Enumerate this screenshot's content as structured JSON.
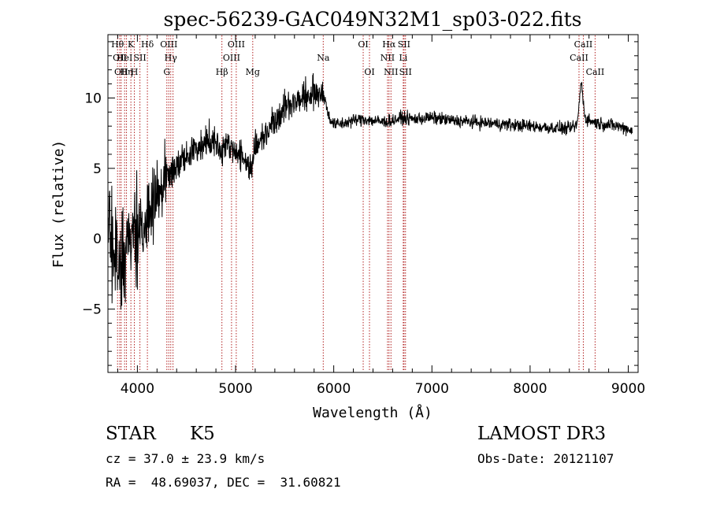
{
  "chart_data": {
    "type": "line",
    "title": "spec-56239-GAC049N32M1_sp03-022.fits",
    "xlabel": "Wavelength (Å)",
    "ylabel": "Flux (relative)",
    "xlim": [
      3700,
      9100
    ],
    "ylim": [
      -9.5,
      14.5
    ],
    "grid": false,
    "legend": "none",
    "line_color": "#000000",
    "marker_color": "#b22222",
    "xticks": [
      {
        "value": 4000,
        "label": "4000"
      },
      {
        "value": 5000,
        "label": "5000"
      },
      {
        "value": 6000,
        "label": "6000"
      },
      {
        "value": 7000,
        "label": "7000"
      },
      {
        "value": 8000,
        "label": "8000"
      },
      {
        "value": 9000,
        "label": "9000"
      }
    ],
    "yticks": [
      {
        "value": -5,
        "label": "−5"
      },
      {
        "value": 0,
        "label": "0"
      },
      {
        "value": 5,
        "label": "5"
      },
      {
        "value": 10,
        "label": "10"
      }
    ],
    "continuum": {
      "x": [
        3700,
        3800,
        3900,
        4000,
        4100,
        4200,
        4300,
        4400,
        4500,
        4600,
        4700,
        4800,
        4860,
        4900,
        5000,
        5100,
        5150,
        5200,
        5300,
        5400,
        5500,
        5600,
        5700,
        5800,
        5890,
        5950,
        6000,
        6100,
        6200,
        6300,
        6400,
        6500,
        6600,
        6700,
        6800,
        7000,
        7200,
        7400,
        7600,
        7800,
        8000,
        8200,
        8400,
        8480,
        8520,
        8560,
        8600,
        8700,
        8800,
        8900,
        9000,
        9040
      ],
      "y": [
        0.5,
        -2.0,
        -0.5,
        0.5,
        1.5,
        3.0,
        4.3,
        5.2,
        5.8,
        6.4,
        6.9,
        7.1,
        6.2,
        6.8,
        6.3,
        5.5,
        5.0,
        6.4,
        7.5,
        8.5,
        9.3,
        9.8,
        10.0,
        10.3,
        10.5,
        8.7,
        8.1,
        8.2,
        8.4,
        8.5,
        8.4,
        8.3,
        8.4,
        8.6,
        8.5,
        8.6,
        8.4,
        8.3,
        8.2,
        8.1,
        8.0,
        7.9,
        7.8,
        8.1,
        11.2,
        8.6,
        8.4,
        8.2,
        8.1,
        8.0,
        7.8,
        7.7
      ]
    },
    "noise": [
      {
        "to": 4000,
        "amp": 3.0
      },
      {
        "to": 4300,
        "amp": 1.8
      },
      {
        "to": 4900,
        "amp": 0.9
      },
      {
        "to": 5300,
        "amp": 0.8
      },
      {
        "to": 5900,
        "amp": 0.9
      },
      {
        "to": 9100,
        "amp": 0.35
      }
    ],
    "lines": [
      {
        "wl": 3798,
        "label": "Hθ",
        "row": 0
      },
      {
        "wl": 3820,
        "label": "OII",
        "row": 1
      },
      {
        "wl": 3835,
        "label": "OII",
        "row": 2
      },
      {
        "wl": 3870,
        "label": "HeI",
        "row": 1
      },
      {
        "wl": 3889,
        "label": "Hη",
        "row": 2
      },
      {
        "wl": 3934,
        "label": "K",
        "row": 0
      },
      {
        "wl": 3969,
        "label": "H",
        "row": 2
      },
      {
        "wl": 4026,
        "label": "SII",
        "row": 1
      },
      {
        "wl": 4102,
        "label": "Hδ",
        "row": 0
      },
      {
        "wl": 4300,
        "label": "G",
        "row": 2
      },
      {
        "wl": 4320,
        "label": "OIII",
        "row": 0
      },
      {
        "wl": 4340,
        "label": "Hγ",
        "row": 1
      },
      {
        "wl": 4363,
        "label": "",
        "row": -1
      },
      {
        "wl": 4861,
        "label": "Hβ",
        "row": 2
      },
      {
        "wl": 4959,
        "label": "OIII",
        "row": 1
      },
      {
        "wl": 5007,
        "label": "OIII",
        "row": 0
      },
      {
        "wl": 5175,
        "label": "Mg",
        "row": 2
      },
      {
        "wl": 5893,
        "label": "Na",
        "row": 1
      },
      {
        "wl": 6300,
        "label": "OI",
        "row": 0
      },
      {
        "wl": 6364,
        "label": "OI",
        "row": 2
      },
      {
        "wl": 6548,
        "label": "NII",
        "row": 1
      },
      {
        "wl": 6563,
        "label": "Hα",
        "row": 0
      },
      {
        "wl": 6583,
        "label": "NII",
        "row": 2
      },
      {
        "wl": 6708,
        "label": "Li",
        "row": 1
      },
      {
        "wl": 6716,
        "label": "SII",
        "row": 0
      },
      {
        "wl": 6731,
        "label": "SII",
        "row": 2
      },
      {
        "wl": 8498,
        "label": "CaII",
        "row": 1
      },
      {
        "wl": 8542,
        "label": "CaII",
        "row": 0
      },
      {
        "wl": 8662,
        "label": "CaII",
        "row": 2
      }
    ]
  },
  "footer": {
    "class_label": "STAR",
    "subclass_label": "K5",
    "survey_label": "LAMOST DR3",
    "redshift_text": "cz = 37.0 ± 23.9 km/s",
    "obs_date_text": "Obs-Date: 20121107",
    "coords_text": "RA =  48.69037, DEC =  31.60821"
  }
}
